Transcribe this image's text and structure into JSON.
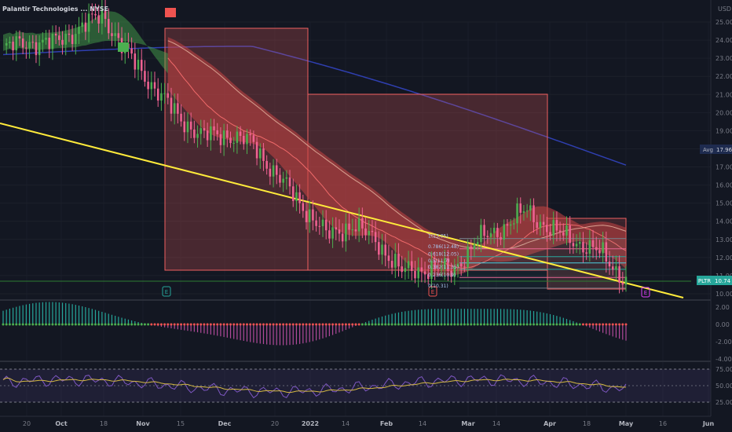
{
  "window": {
    "title": "Palantir Technologies ... NYSE",
    "currency": "USD"
  },
  "colors": {
    "background": "#131722",
    "up": "#26a69a",
    "up_candle": "#4caf50",
    "down": "#ef5350",
    "down_candle": "#f06292",
    "trendline": "#ffeb3b",
    "ma_long": "#2f3fb0",
    "band_fill": "#e85a5a",
    "macd_pos": "#26a69a",
    "macd_neg": "#b04a9a",
    "rsi": "#7e57c2",
    "rsi_ma": "#d4b842"
  },
  "price_axis": {
    "ticks": [
      "25.00",
      "24.00",
      "23.00",
      "22.00",
      "21.00",
      "20.00",
      "19.00",
      "18.00",
      "17.00",
      "16.00",
      "15.00",
      "14.00",
      "13.00",
      "12.00",
      "11.00",
      "10.00"
    ]
  },
  "macd_axis": {
    "ticks": [
      "2.00",
      "0.00",
      "-2.00",
      "-4.00"
    ]
  },
  "rsi_axis": {
    "ticks": [
      "75.00",
      "50.00",
      "25.00"
    ]
  },
  "time_axis": {
    "labels": [
      "20",
      "Oct",
      "18",
      "Nov",
      "15",
      "Dec",
      "20",
      "2022",
      "14",
      "Feb",
      "14",
      "Mar",
      "14",
      "Apr",
      "18",
      "May",
      "16",
      "Jun"
    ]
  },
  "tags": {
    "avg_label": "Avg",
    "avg_value": "17.96",
    "ticker": "PLTR",
    "last_price": "10.74",
    "earnings_marker": "E"
  },
  "fib_labels": [
    "1(13.05)",
    "0.786(12.48)",
    "0.618(12.05)",
    "0.5(11.7)",
    "0.382(11.35)",
    "0.236(10.9)",
    "0(10.31)"
  ],
  "chart_data": {
    "type": "candlestick",
    "title": "Palantir Technologies ... NYSE",
    "panels": [
      "price",
      "macd_histogram",
      "rsi"
    ],
    "x_labels": [
      "20",
      "Oct",
      "18",
      "Nov",
      "15",
      "Dec",
      "20",
      "2022",
      "14",
      "Feb",
      "14",
      "Mar",
      "14",
      "Apr",
      "18",
      "May",
      "16",
      "Jun"
    ],
    "ylim_price": [
      10.0,
      25.5
    ],
    "price_path": [
      [
        23.5,
        "20"
      ],
      [
        23.9,
        "Oct"
      ],
      [
        23.8,
        "18"
      ],
      [
        24.6,
        "Nov"
      ],
      [
        25.4,
        ""
      ],
      [
        23.2,
        "15"
      ],
      [
        21.5,
        ""
      ],
      [
        19.8,
        "Dec"
      ],
      [
        18.7,
        ""
      ],
      [
        18.8,
        "20"
      ],
      [
        18.3,
        "2022"
      ],
      [
        16.5,
        ""
      ],
      [
        14.9,
        "14"
      ],
      [
        13.2,
        "Feb"
      ],
      [
        13.8,
        ""
      ],
      [
        12.9,
        "14"
      ],
      [
        11.2,
        "Mar"
      ],
      [
        11.4,
        ""
      ],
      [
        11.2,
        "14"
      ],
      [
        12.9,
        ""
      ],
      [
        13.6,
        "Apr"
      ],
      [
        14.6,
        ""
      ],
      [
        13.5,
        ""
      ],
      [
        12.9,
        "18"
      ],
      [
        12.2,
        ""
      ],
      [
        10.74,
        "May"
      ]
    ],
    "yellow_trendline": {
      "start_price": 19.9,
      "end_price": 9.8
    },
    "macd_range": [
      -4.0,
      2.0
    ],
    "rsi_range": [
      25,
      75
    ],
    "rsi_levels": [
      70,
      50,
      30
    ],
    "last_price": 10.74,
    "avg_price": 17.96
  }
}
